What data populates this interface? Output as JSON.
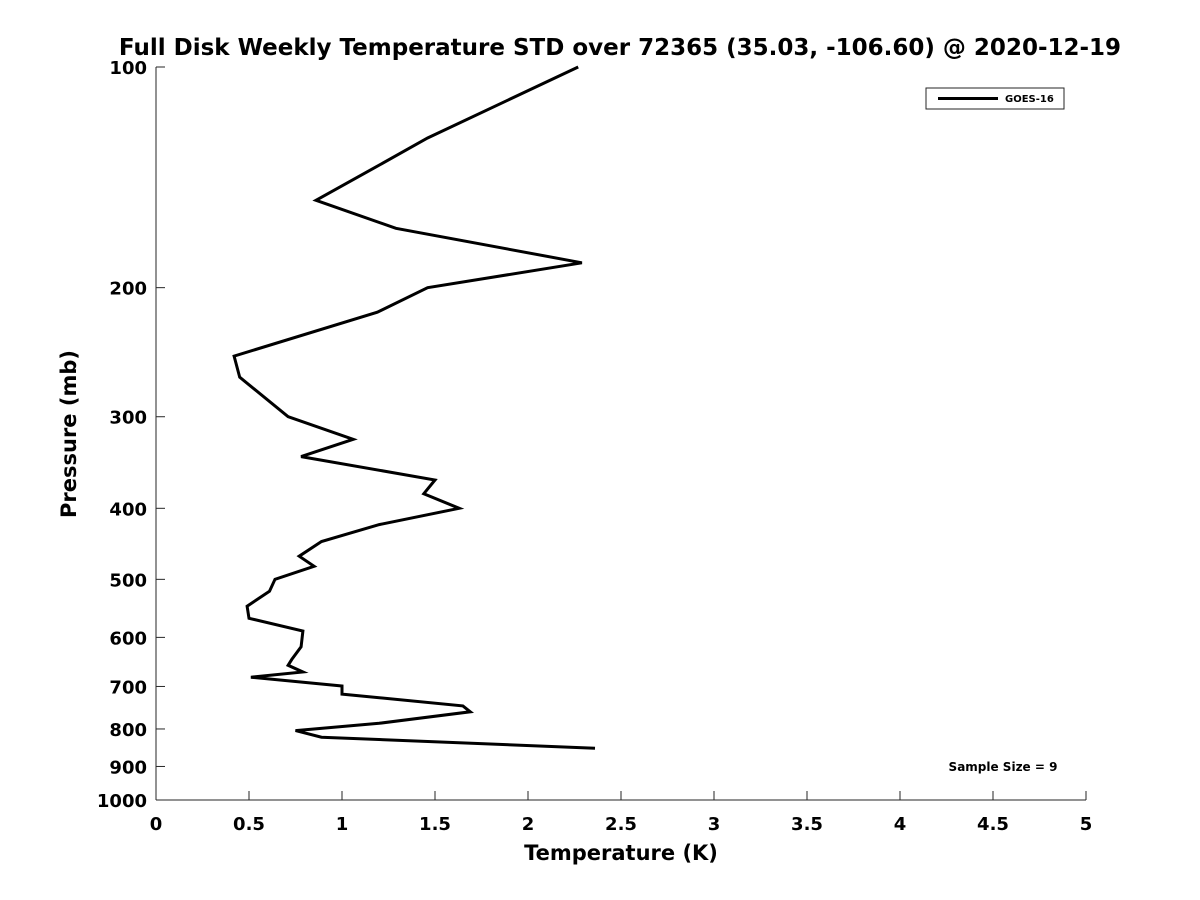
{
  "chart_data": {
    "type": "line",
    "title": "Full Disk Weekly Temperature STD over 72365 (35.03, -106.60) @ 2020-12-19",
    "xlabel": "Temperature (K)",
    "ylabel": "Pressure (mb)",
    "xlim": [
      0,
      5
    ],
    "ylim": [
      100,
      1000
    ],
    "y_scale": "log",
    "y_reversed": true,
    "grid": false,
    "legend_position": "top-right",
    "x_ticks": [
      "0",
      "0.5",
      "1",
      "1.5",
      "2",
      "2.5",
      "3",
      "3.5",
      "4",
      "4.5",
      "5"
    ],
    "y_ticks": [
      "100",
      "200",
      "300",
      "400",
      "500",
      "600",
      "700",
      "800",
      "900",
      "1000"
    ],
    "annotation": "Sample Size = 9",
    "series": [
      {
        "name": "GOES-16",
        "color": "#000000",
        "points": [
          {
            "x": 2.27,
            "pressure": 100
          },
          {
            "x": 1.46,
            "pressure": 125
          },
          {
            "x": 1.18,
            "pressure": 137
          },
          {
            "x": 0.86,
            "pressure": 152
          },
          {
            "x": 1.29,
            "pressure": 166
          },
          {
            "x": 2.29,
            "pressure": 185
          },
          {
            "x": 1.46,
            "pressure": 200
          },
          {
            "x": 1.19,
            "pressure": 216
          },
          {
            "x": 0.42,
            "pressure": 248
          },
          {
            "x": 0.45,
            "pressure": 265
          },
          {
            "x": 0.71,
            "pressure": 300
          },
          {
            "x": 1.06,
            "pressure": 322
          },
          {
            "x": 0.78,
            "pressure": 340
          },
          {
            "x": 1.5,
            "pressure": 366
          },
          {
            "x": 1.44,
            "pressure": 382
          },
          {
            "x": 1.63,
            "pressure": 400
          },
          {
            "x": 1.2,
            "pressure": 421
          },
          {
            "x": 0.89,
            "pressure": 444
          },
          {
            "x": 0.77,
            "pressure": 465
          },
          {
            "x": 0.85,
            "pressure": 480
          },
          {
            "x": 0.64,
            "pressure": 500
          },
          {
            "x": 0.61,
            "pressure": 519
          },
          {
            "x": 0.49,
            "pressure": 544
          },
          {
            "x": 0.5,
            "pressure": 565
          },
          {
            "x": 0.79,
            "pressure": 588
          },
          {
            "x": 0.78,
            "pressure": 618
          },
          {
            "x": 0.73,
            "pressure": 643
          },
          {
            "x": 0.71,
            "pressure": 655
          },
          {
            "x": 0.79,
            "pressure": 669
          },
          {
            "x": 0.51,
            "pressure": 680
          },
          {
            "x": 1.0,
            "pressure": 699
          },
          {
            "x": 1.0,
            "pressure": 717
          },
          {
            "x": 1.65,
            "pressure": 744
          },
          {
            "x": 1.69,
            "pressure": 758
          },
          {
            "x": 1.2,
            "pressure": 786
          },
          {
            "x": 0.75,
            "pressure": 804
          },
          {
            "x": 0.89,
            "pressure": 821
          },
          {
            "x": 2.36,
            "pressure": 850
          }
        ]
      }
    ]
  }
}
